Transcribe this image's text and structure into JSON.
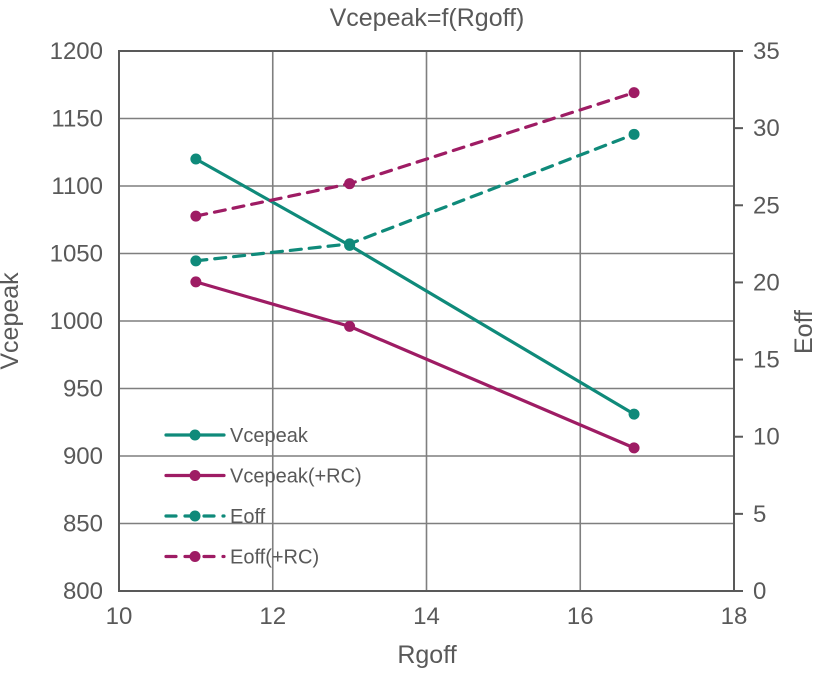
{
  "window": {
    "background": "#ffffff"
  },
  "chart_data": {
    "type": "line",
    "title": "Vcepeak=f(Rgoff)",
    "xlabel": "Rgoff",
    "ylabel_left": "Vcepeak",
    "ylabel_right": "Eoff",
    "xlim": [
      10,
      18
    ],
    "x_ticks": [
      10,
      12,
      14,
      16,
      18
    ],
    "ylim_left": [
      800,
      1200
    ],
    "y_ticks_left": [
      800,
      850,
      900,
      950,
      1000,
      1050,
      1100,
      1150,
      1200
    ],
    "ylim_right": [
      0,
      35
    ],
    "y_ticks_right": [
      0,
      5,
      10,
      15,
      20,
      25,
      30,
      35
    ],
    "grid": true,
    "legend_position": "inside-bottom-left",
    "x": [
      11,
      13,
      16.7
    ],
    "series": [
      {
        "name": "Vcepeak",
        "axis": "left",
        "line": "solid",
        "marker": "dot",
        "color": "#0f8a7a",
        "values": [
          1120,
          1056,
          931
        ]
      },
      {
        "name": "Vcepeak(+RC)",
        "axis": "left",
        "line": "solid",
        "marker": "dot",
        "color": "#9e1c64",
        "values": [
          1029,
          996,
          906
        ]
      },
      {
        "name": "Eoff",
        "axis": "right",
        "line": "dashed",
        "marker": "dot",
        "color": "#0f8a7a",
        "values": [
          21.4,
          22.5,
          29.6
        ]
      },
      {
        "name": "Eoff(+RC)",
        "axis": "right",
        "line": "dashed",
        "marker": "dot",
        "color": "#9e1c64",
        "values": [
          24.3,
          26.4,
          32.3
        ]
      }
    ],
    "colors": {
      "teal": "#0f8a7a",
      "magenta": "#9e1c64",
      "text": "#595959",
      "gridline": "#7f7f7f",
      "plot_border": "#595959",
      "background": "#ffffff"
    }
  }
}
